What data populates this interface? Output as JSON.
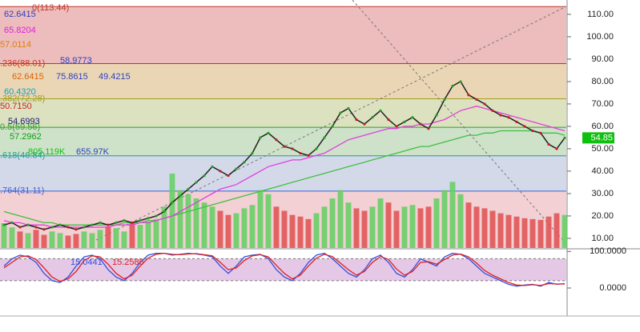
{
  "chart_data": [
    {
      "type": "price",
      "ylim": [
        5.7,
        116.4
      ],
      "yticks": [
        {
          "value": 110,
          "label": "110.00"
        },
        {
          "value": 100,
          "label": "100.00"
        },
        {
          "value": 90,
          "label": "90.00"
        },
        {
          "value": 80,
          "label": "80.00"
        },
        {
          "value": 70,
          "label": "70.00"
        },
        {
          "value": 60,
          "label": "60.00"
        },
        {
          "value": 50,
          "label": "50.00"
        },
        {
          "value": 40,
          "label": "40.00"
        },
        {
          "value": 30,
          "label": "30.00"
        },
        {
          "value": 20,
          "label": "20.00"
        },
        {
          "value": 10,
          "label": "10.00"
        }
      ],
      "fib_levels": [
        {
          "value": 113.44,
          "label": "0(113.44)",
          "color": "#c0392b",
          "fill": "#eab0b0"
        },
        {
          "value": 88.01,
          "label": ".236(88.01)",
          "color": "#d03020",
          "fill": "#e6cfa8"
        },
        {
          "value": 72.28,
          "label": ".382(72.28)",
          "color": "#a0a020",
          "fill": "#d6dcb4"
        },
        {
          "value": 59.56,
          "label": "0.5(59.56)",
          "color": "#30a030",
          "fill": "#c6dcc0"
        },
        {
          "value": 46.84,
          "label": ".618(46.84)",
          "color": "#20a090",
          "fill": "#cdd2e6"
        },
        {
          "value": 31.11,
          "label": ".764(31.11)",
          "color": "#4060d0",
          "fill": "#f0c8cc"
        }
      ],
      "close": [
        16,
        17,
        15,
        16,
        15,
        14,
        15,
        16,
        15,
        14,
        15,
        16,
        17,
        16,
        17,
        18,
        17,
        18,
        19,
        20,
        22,
        26,
        29,
        32,
        35,
        38,
        42,
        40,
        38,
        41,
        44,
        48,
        55,
        57,
        54,
        51,
        50,
        48,
        47,
        50,
        55,
        60,
        66,
        68,
        63,
        61,
        64,
        67,
        63,
        60,
        62,
        64,
        61,
        59,
        65,
        72,
        78,
        80,
        74,
        72,
        70,
        67,
        65,
        64,
        62,
        60,
        58,
        57,
        52,
        50,
        54.85
      ],
      "close_color": "#202020",
      "lines": [
        {
          "color": "#40c040",
          "values": [
            22,
            21,
            20,
            19,
            18,
            17,
            17,
            16,
            16,
            16,
            16,
            16,
            16,
            16,
            16,
            17,
            17,
            17,
            18,
            18,
            19,
            20,
            21,
            22,
            23,
            24,
            25,
            26,
            27,
            28,
            29,
            30,
            31,
            32,
            33,
            34,
            35,
            36,
            37,
            38,
            39,
            40,
            41,
            42,
            43,
            44,
            45,
            46,
            47,
            48,
            49,
            50,
            51,
            51,
            52,
            53,
            54,
            55,
            56,
            56,
            57,
            57,
            58,
            58,
            58,
            58,
            58,
            57,
            57,
            57,
            56
          ]
        },
        {
          "color": "#e040e0",
          "values": [
            18,
            17,
            17,
            16,
            16,
            16,
            15,
            15,
            15,
            15,
            15,
            15,
            15,
            15,
            16,
            16,
            16,
            17,
            17,
            18,
            19,
            20,
            22,
            24,
            26,
            28,
            30,
            32,
            33,
            34,
            36,
            38,
            40,
            42,
            43,
            44,
            45,
            45,
            46,
            47,
            48,
            50,
            52,
            54,
            55,
            56,
            57,
            58,
            59,
            59,
            60,
            60,
            61,
            61,
            62,
            63,
            65,
            67,
            68,
            69,
            68,
            67,
            66,
            65,
            64,
            63,
            62,
            61,
            60,
            59,
            58
          ]
        }
      ],
      "volume": [
        300,
        250,
        200,
        180,
        220,
        160,
        200,
        180,
        150,
        170,
        200,
        180,
        220,
        260,
        240,
        200,
        300,
        280,
        320,
        350,
        500,
        900,
        700,
        650,
        600,
        550,
        500,
        450,
        400,
        420,
        480,
        520,
        700,
        650,
        500,
        450,
        400,
        380,
        350,
        420,
        500,
        600,
        700,
        550,
        480,
        450,
        500,
        600,
        550,
        450,
        500,
        520,
        480,
        500,
        600,
        700,
        800,
        650,
        550,
        500,
        480,
        450,
        420,
        400,
        380,
        360,
        350,
        340,
        380,
        420,
        400
      ],
      "volume_lim": [
        0,
        3000
      ],
      "volume_up": "#60d060",
      "volume_down": "#e05050",
      "last_price": {
        "value": 54.85,
        "label": "54.85",
        "color": "#10c010"
      },
      "indicator_labels": [
        {
          "text": "62.6415",
          "color": "#3040c0"
        },
        {
          "text": "65.8204",
          "color": "#e020e0"
        },
        {
          "text": "57.0114",
          "color": "#e08000"
        },
        {
          "text": "58.9773",
          "color": "#3040c0"
        },
        {
          "text": "62.6415",
          "color": "#e06000"
        },
        {
          "text": "75.8615",
          "color": "#3040c0"
        },
        {
          "text": "49.4215",
          "color": "#3040c0"
        },
        {
          "text": "60.4320",
          "color": "#10a0c0"
        },
        {
          "text": "50.7150",
          "color": "#d02020"
        },
        {
          "text": "54.6993",
          "color": "#202080"
        },
        {
          "text": "57.2962",
          "color": "#10a010"
        },
        {
          "text": "805.119K",
          "color": "#10c010"
        },
        {
          "text": "655.97K",
          "color": "#3040c0"
        }
      ]
    },
    {
      "type": "stochastic",
      "ylim": [
        -70,
        105
      ],
      "yticks": [
        {
          "value": 100,
          "label": "100.0000"
        },
        {
          "value": 0,
          "label": "0.0000"
        }
      ],
      "band": [
        20,
        80
      ],
      "series": [
        {
          "color": "#3050e0",
          "values": [
            60,
            80,
            90,
            85,
            70,
            40,
            20,
            15,
            30,
            60,
            85,
            90,
            80,
            50,
            30,
            20,
            40,
            70,
            90,
            95,
            95,
            90,
            92,
            95,
            93,
            90,
            85,
            60,
            40,
            60,
            85,
            90,
            92,
            80,
            50,
            30,
            20,
            40,
            70,
            90,
            95,
            80,
            60,
            40,
            30,
            50,
            80,
            90,
            70,
            40,
            30,
            50,
            80,
            70,
            60,
            85,
            95,
            92,
            80,
            60,
            40,
            30,
            20,
            10,
            5,
            8,
            10,
            5,
            15,
            10,
            12
          ]
        },
        {
          "color": "#e02020",
          "values": [
            55,
            70,
            85,
            88,
            78,
            55,
            30,
            18,
            25,
            45,
            75,
            88,
            85,
            65,
            40,
            25,
            35,
            60,
            82,
            92,
            95,
            92,
            91,
            93,
            94,
            91,
            88,
            70,
            50,
            55,
            75,
            88,
            91,
            85,
            62,
            40,
            25,
            35,
            60,
            82,
            92,
            86,
            68,
            50,
            35,
            45,
            70,
            86,
            78,
            52,
            35,
            45,
            70,
            72,
            65,
            78,
            90,
            93,
            85,
            68,
            48,
            35,
            25,
            15,
            8,
            7,
            9,
            7,
            12,
            11,
            11
          ]
        }
      ],
      "value_labels": [
        "15.0441",
        "15.2586"
      ]
    }
  ]
}
